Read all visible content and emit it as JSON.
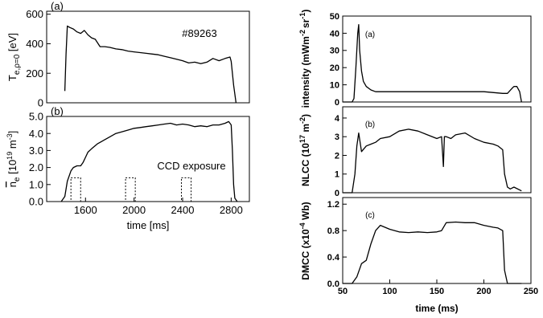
{
  "chart_data": [
    {
      "type": "line",
      "panel_label": "(a)",
      "annotation": "#89263",
      "ylabel": "T_e,ρ=0 [eV]",
      "ylabel_main": "T",
      "ylabel_sub": "e,ρ=0",
      "ylabel_unit": " [eV]",
      "xlim": [
        1280,
        2950
      ],
      "ylim": [
        0,
        620
      ],
      "yticks": [
        0,
        200,
        400,
        600
      ],
      "yticklabels": [
        "0",
        "200",
        "400",
        "600"
      ],
      "series": [
        {
          "x": [
            1430,
            1440,
            1450,
            1470,
            1500,
            1530,
            1560,
            1590,
            1620,
            1650,
            1680,
            1700,
            1720,
            1760,
            1800,
            1850,
            1900,
            1950,
            2000,
            2050,
            2100,
            2150,
            2200,
            2250,
            2300,
            2350,
            2400,
            2450,
            2500,
            2550,
            2600,
            2650,
            2700,
            2750,
            2790,
            2800,
            2820,
            2840
          ],
          "y": [
            80,
            330,
            520,
            510,
            500,
            480,
            470,
            490,
            460,
            440,
            430,
            405,
            380,
            380,
            375,
            365,
            360,
            350,
            345,
            340,
            335,
            330,
            325,
            315,
            305,
            295,
            285,
            270,
            275,
            265,
            275,
            300,
            285,
            300,
            310,
            280,
            120,
            0
          ]
        }
      ]
    },
    {
      "type": "line",
      "panel_label": "(b)",
      "ylabel": "n_e [10^19 m^-3]",
      "ylabel_main": "n",
      "ylabel_sub": "e",
      "ylabel_unit": " [10",
      "ylabel_exp1": "19",
      "ylabel_mid": " m",
      "ylabel_exp2": "-3",
      "ylabel_end": "]",
      "xlabel": "time [ms]",
      "xlim": [
        1280,
        2950
      ],
      "ylim": [
        0,
        5.0
      ],
      "yticks": [
        0,
        1.0,
        2.0,
        3.0,
        4.0,
        5.0
      ],
      "yticklabels": [
        "0.0",
        "1.0",
        "2.0",
        "3.0",
        "4.0",
        "5.0"
      ],
      "xticks": [
        1600,
        2000,
        2400,
        2800
      ],
      "xticklabels": [
        "1600",
        "2000",
        "2400",
        "2800"
      ],
      "annotation": "CCD exposure",
      "exposure_windows": [
        [
          1480,
          1560
        ],
        [
          1930,
          2010
        ],
        [
          2390,
          2470
        ]
      ],
      "exposure_height": 1.4,
      "series": [
        {
          "x": [
            1400,
            1430,
            1450,
            1480,
            1500,
            1530,
            1560,
            1580,
            1600,
            1620,
            1650,
            1700,
            1750,
            1800,
            1850,
            1900,
            1950,
            2000,
            2050,
            2100,
            2150,
            2200,
            2250,
            2300,
            2350,
            2400,
            2450,
            2500,
            2550,
            2600,
            2650,
            2700,
            2750,
            2780,
            2800,
            2810,
            2820,
            2830,
            2850
          ],
          "y": [
            0.0,
            0.3,
            1.2,
            1.8,
            2.0,
            2.1,
            2.1,
            2.3,
            2.6,
            2.9,
            3.1,
            3.4,
            3.6,
            3.8,
            4.0,
            4.1,
            4.2,
            4.3,
            4.35,
            4.4,
            4.45,
            4.5,
            4.55,
            4.6,
            4.5,
            4.55,
            4.5,
            4.4,
            4.45,
            4.4,
            4.5,
            4.5,
            4.6,
            4.7,
            4.5,
            3.0,
            1.0,
            0.2,
            0.0
          ]
        }
      ]
    },
    {
      "type": "line",
      "panel_label": "(a)",
      "ylabel": "intensity (mWm^-2 sr^-1)",
      "ylabel_main": "intensity (mWm",
      "ylabel_exp1": "-2",
      "ylabel_mid": "sr",
      "ylabel_exp2": "-1",
      "ylabel_end": ")",
      "xlim": [
        50,
        250
      ],
      "ylim": [
        0,
        50
      ],
      "yticks": [
        0,
        10,
        20,
        30,
        40,
        50
      ],
      "yticklabels": [
        "0",
        "10",
        "20",
        "30",
        "40",
        "50"
      ],
      "series": [
        {
          "x": [
            50,
            60,
            62,
            64,
            66,
            67,
            68,
            70,
            72,
            75,
            80,
            85,
            90,
            100,
            120,
            140,
            160,
            180,
            200,
            220,
            225,
            230,
            232,
            235,
            238,
            240
          ],
          "y": [
            0,
            0,
            2,
            20,
            40,
            45,
            30,
            18,
            12,
            9,
            7,
            6,
            6,
            6,
            6,
            6,
            6,
            6,
            6,
            5,
            5,
            8,
            9,
            9,
            6,
            0
          ]
        }
      ]
    },
    {
      "type": "line",
      "panel_label": "(b)",
      "ylabel": "NLCC (10^17 m^-2)",
      "ylabel_main": "NLCC (10",
      "ylabel_exp1": "17",
      "ylabel_mid": " m",
      "ylabel_exp2": "-2",
      "ylabel_end": ")",
      "xlim": [
        50,
        250
      ],
      "ylim": [
        0,
        4.6
      ],
      "yticks": [
        0,
        1,
        2,
        3,
        4
      ],
      "yticklabels": [
        "0",
        "1",
        "2",
        "3",
        "4"
      ],
      "series": [
        {
          "x": [
            50,
            60,
            63,
            65,
            67,
            70,
            75,
            80,
            85,
            90,
            100,
            110,
            120,
            130,
            140,
            150,
            155,
            157,
            158,
            160,
            165,
            170,
            180,
            190,
            200,
            210,
            215,
            220,
            222,
            225,
            228,
            232,
            240
          ],
          "y": [
            0,
            0,
            1.0,
            2.5,
            3.2,
            2.2,
            2.5,
            2.6,
            2.7,
            2.9,
            3.0,
            3.3,
            3.4,
            3.3,
            3.1,
            2.9,
            3.0,
            1.4,
            3.0,
            3.0,
            2.9,
            3.1,
            3.2,
            2.9,
            2.7,
            2.6,
            2.5,
            2.3,
            1.0,
            0.3,
            0.2,
            0.3,
            0.1
          ]
        }
      ]
    },
    {
      "type": "line",
      "panel_label": "(c)",
      "ylabel": "DMCC (x10^-4 Wb)",
      "ylabel_main": "DMCC (x10",
      "ylabel_exp1": "-4",
      "ylabel_end": " Wb)",
      "xlabel": "time (ms)",
      "xlim": [
        50,
        250
      ],
      "ylim": [
        0,
        1.3
      ],
      "yticks": [
        0,
        0.4,
        0.8,
        1.2
      ],
      "yticklabels": [
        "0.0",
        "0.4",
        "0.8",
        "1.2"
      ],
      "xticks": [
        50,
        100,
        150,
        200,
        250
      ],
      "xticklabels": [
        "50",
        "100",
        "150",
        "200",
        "250"
      ],
      "series": [
        {
          "x": [
            50,
            60,
            65,
            70,
            75,
            80,
            85,
            90,
            100,
            110,
            120,
            130,
            140,
            150,
            155,
            160,
            170,
            180,
            190,
            200,
            210,
            215,
            220,
            222,
            225,
            240
          ],
          "y": [
            0,
            0,
            0.1,
            0.3,
            0.35,
            0.6,
            0.8,
            0.88,
            0.82,
            0.78,
            0.77,
            0.78,
            0.77,
            0.78,
            0.8,
            0.92,
            0.93,
            0.92,
            0.92,
            0.88,
            0.85,
            0.84,
            0.8,
            0.2,
            0.0,
            0.0
          ]
        }
      ]
    }
  ]
}
